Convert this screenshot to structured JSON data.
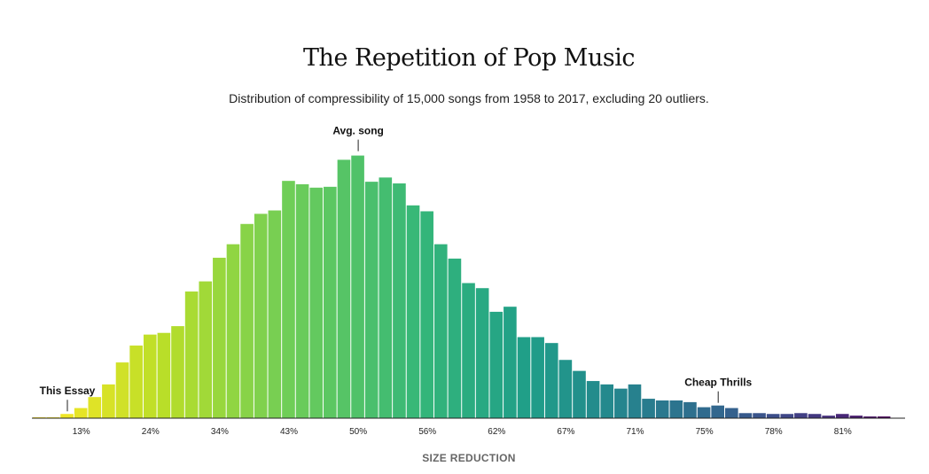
{
  "chart_data": {
    "type": "bar",
    "title": "The Repetition of Pop Music",
    "subtitle": "Distribution of compressibility of 15,000 songs from 1958 to 2017, excluding 20 outliers.",
    "xlabel": "SIZE REDUCTION",
    "ylabel": "",
    "tick_labels": [
      "13%",
      "24%",
      "34%",
      "43%",
      "50%",
      "56%",
      "62%",
      "67%",
      "71%",
      "75%",
      "78%",
      "81%"
    ],
    "tick_bins": [
      3,
      8,
      13,
      18,
      23,
      28,
      33,
      38,
      43,
      48,
      53,
      58
    ],
    "values": [
      1,
      1,
      5,
      12,
      25,
      40,
      66,
      86,
      99,
      101,
      109,
      150,
      162,
      190,
      206,
      230,
      242,
      246,
      281,
      277,
      273,
      274,
      306,
      311,
      280,
      285,
      278,
      252,
      245,
      206,
      189,
      160,
      154,
      126,
      132,
      96,
      96,
      89,
      69,
      56,
      44,
      40,
      35,
      40,
      23,
      21,
      21,
      19,
      13,
      15,
      12,
      6,
      6,
      5,
      5,
      6,
      5,
      3,
      5,
      3,
      2,
      2
    ],
    "ylim": [
      0,
      320
    ],
    "annotations": [
      {
        "label": "This Essay",
        "bin": 2,
        "position": "left"
      },
      {
        "label": "Avg. song",
        "bin": 23,
        "position": "top"
      },
      {
        "label": "Cheap Thrills",
        "bin": 49,
        "position": "right"
      }
    ]
  }
}
